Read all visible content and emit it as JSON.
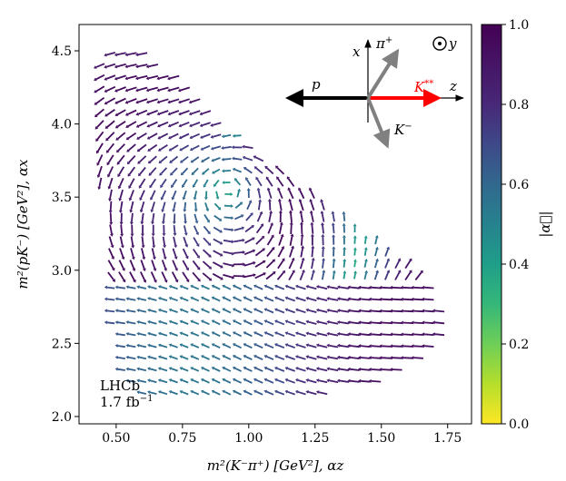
{
  "chart_data": {
    "type": "vector_field",
    "xlabel": "m²(K⁻π⁺) [GeV²],   αz",
    "ylabel": "m²(pK⁻) [GeV²],   αx",
    "xlim": [
      0.36,
      1.84
    ],
    "ylim": [
      1.95,
      4.68
    ],
    "x_ticks": [
      "0.50",
      "0.75",
      "1.00",
      "1.25",
      "1.50",
      "1.75"
    ],
    "x_tick_values": [
      0.5,
      0.75,
      1.0,
      1.25,
      1.5,
      1.75
    ],
    "y_ticks": [
      "2.0",
      "2.5",
      "3.0",
      "3.5",
      "4.0",
      "4.5"
    ],
    "y_tick_values": [
      2.0,
      2.5,
      3.0,
      3.5,
      4.0,
      4.5
    ],
    "colorbar": {
      "label": "|α⃗|",
      "range": [
        0.0,
        1.0
      ],
      "ticks": [
        "0.0",
        "0.2",
        "0.4",
        "0.6",
        "0.8",
        "1.0"
      ],
      "tick_values": [
        0.0,
        0.2,
        0.4,
        0.6,
        0.8,
        1.0
      ],
      "colormap": "viridis"
    },
    "field": {
      "grid_step_x": 0.04,
      "grid_step_y": 0.08,
      "description_note": "Dalitz region of Λc+ → pK−π+; arrows show (αz, αx) polarimeter field, colour = |α|"
    },
    "annotations": {
      "experiment": "LHCb",
      "luminosity": "1.7 fb",
      "luminosity_exp": "−1"
    },
    "inset": {
      "x_label": "x",
      "z_label": "z",
      "y_label": "y",
      "pi_label": "π",
      "pi_sup": "+",
      "p_label": "p",
      "kstar_label": "K",
      "kstar_sup": "**",
      "kminus_label": "K",
      "kminus_sup": "−",
      "colors": {
        "p": "#000000",
        "kstar": "#ff0000",
        "pi": "#808080",
        "kminus": "#808080"
      }
    }
  }
}
